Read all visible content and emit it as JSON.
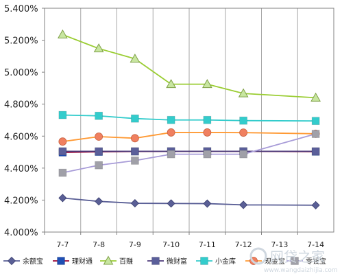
{
  "chart_data": {
    "type": "line",
    "categories": [
      "7-7",
      "7-8",
      "7-9",
      "7-10",
      "7-11",
      "7-12",
      "7-13",
      "7-14"
    ],
    "ylim": [
      4.0,
      5.4
    ],
    "yticks": [
      4.0,
      4.2,
      4.4,
      4.6,
      4.8,
      5.0,
      5.2,
      5.4
    ],
    "ytick_labels": [
      "4.000%",
      "4.200%",
      "4.400%",
      "4.600%",
      "4.800%",
      "5.000%",
      "5.200%",
      "5.400%"
    ],
    "legend_position": "bottom",
    "grid": "vertical",
    "series": [
      {
        "name": "余额宝",
        "color": "#5a5f96",
        "marker": "diamond",
        "values": [
          4.213,
          4.192,
          4.18,
          4.179,
          4.178,
          4.17,
          null,
          4.168
        ]
      },
      {
        "name": "理财通",
        "color": "#990033",
        "marker_color": "#1f4fb4",
        "marker": "square",
        "values": [
          4.498,
          4.502,
          4.504,
          4.505,
          4.505,
          4.505,
          null,
          4.503
        ]
      },
      {
        "name": "百赚",
        "color": "#9acd32",
        "marker_color": "#c8e6a0",
        "marker": "triangle",
        "values": [
          5.235,
          5.148,
          5.084,
          4.925,
          4.925,
          4.867,
          null,
          4.84
        ]
      },
      {
        "name": "微财富",
        "color": "#4b3a7a",
        "marker_color": "#5b5f9a",
        "marker": "square",
        "values": [
          4.505,
          4.505,
          4.505,
          4.505,
          4.505,
          4.505,
          null,
          4.505
        ]
      },
      {
        "name": "小金库",
        "color": "#33cccc",
        "marker": "square",
        "values": [
          4.732,
          4.727,
          4.71,
          4.701,
          4.701,
          4.697,
          null,
          4.695
        ]
      },
      {
        "name": "现金宝",
        "color": "#ff9933",
        "marker_color": "#f08060",
        "marker": "circle",
        "values": [
          4.566,
          4.597,
          4.587,
          4.623,
          4.623,
          4.622,
          null,
          4.615
        ]
      },
      {
        "name": "零钱宝",
        "color": "#a89cd8",
        "marker_color": "#a0a0a8",
        "marker": "square",
        "values": [
          4.371,
          4.418,
          4.447,
          4.487,
          4.487,
          4.487,
          null,
          4.614
        ]
      }
    ]
  },
  "watermark": {
    "text_cn": "网贷之家",
    "url": "www.wangdaizhijia.com"
  }
}
